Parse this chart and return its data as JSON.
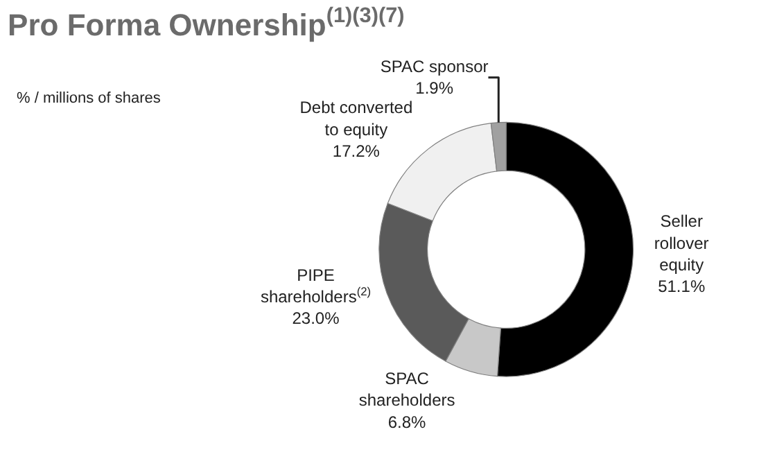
{
  "chart_data": {
    "type": "donut",
    "title": "Pro Forma Ownership$^{(1)(3)(7)}$",
    "subtitle": "% / millions of shares",
    "categories": [
      "Seller rollover equity",
      "SPAC shareholders",
      "PIPE shareholders$^{(2)}$",
      "Debt converted to equity",
      "SPAC sponsor"
    ],
    "values": [
      51.1,
      6.8,
      23.0,
      17.2,
      1.9
    ],
    "value_labels": [
      "51.1%",
      "6.8%",
      "23.0%",
      "17.2%",
      "1.9%"
    ],
    "colors": [
      "#000000",
      "#c8c8c8",
      "#5a5a5a",
      "#f0f0f0",
      "#a0a0a0"
    ],
    "legend": false
  }
}
